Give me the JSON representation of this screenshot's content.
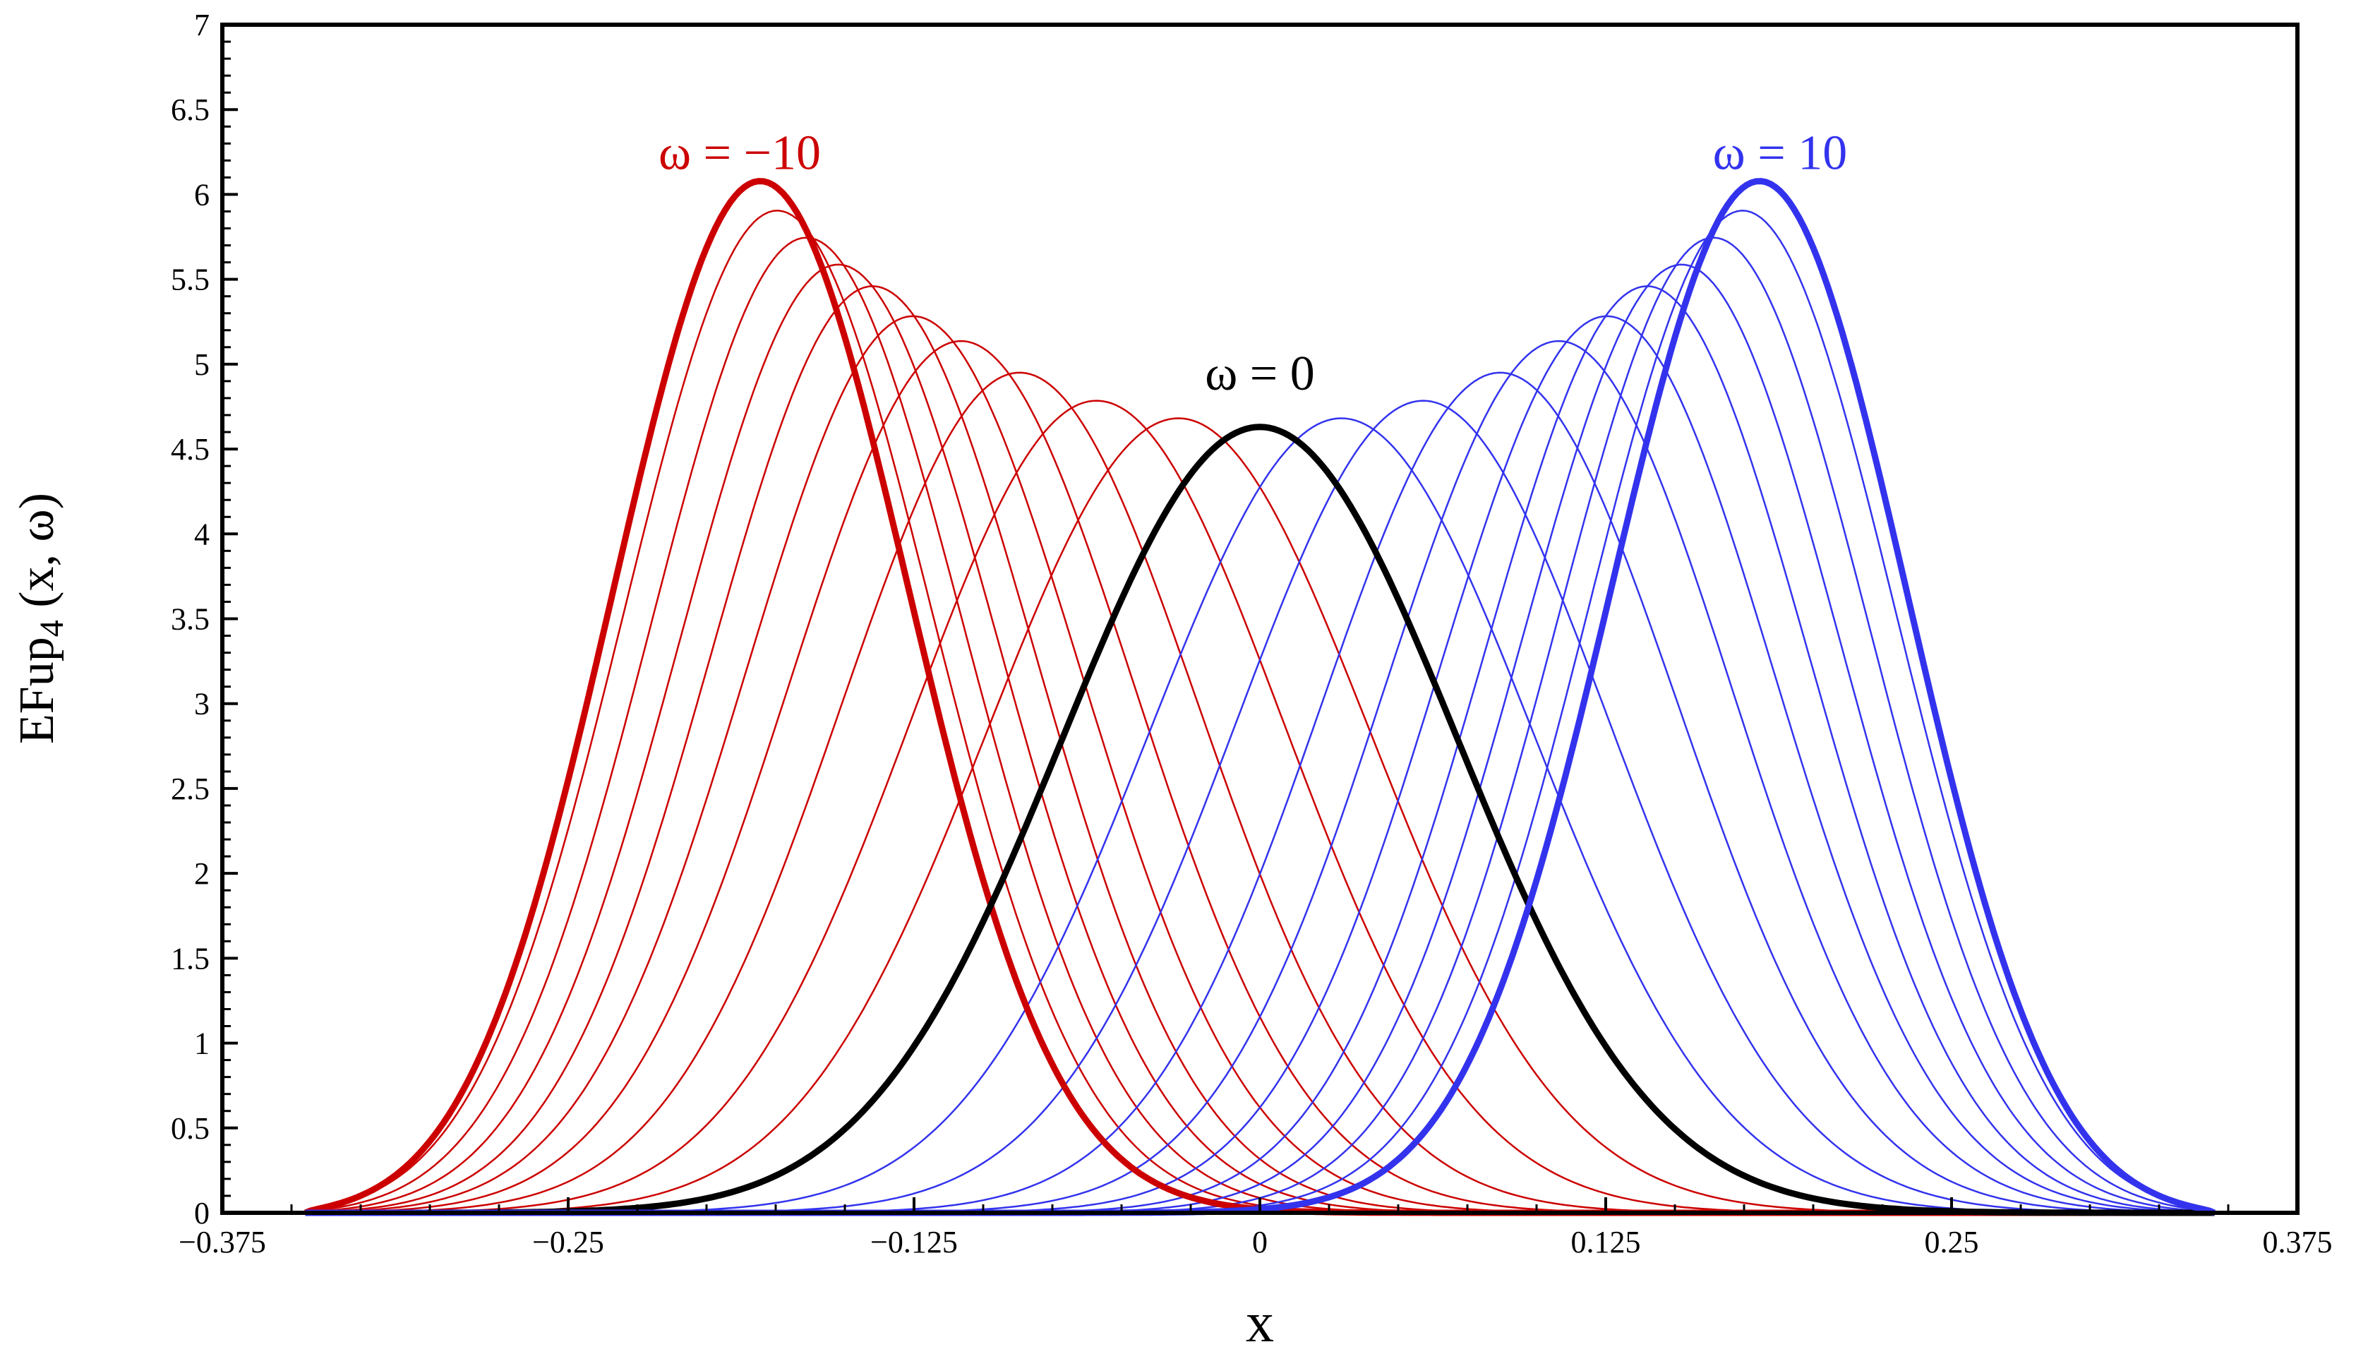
{
  "chart_data": {
    "type": "line",
    "title": "",
    "xlabel": "x",
    "ylabel_main": "EFup",
    "ylabel_sub": "4",
    "ylabel_tail": " (x, ω)",
    "xlim": [
      -0.375,
      0.375
    ],
    "ylim": [
      0,
      7
    ],
    "x_ticks": [
      -0.375,
      -0.25,
      -0.125,
      0,
      0.125,
      0.25,
      0.375
    ],
    "x_tick_labels": [
      "−0.375",
      "−0.25",
      "−0.125",
      "0",
      "0.125",
      "0.25",
      "0.375"
    ],
    "y_ticks": [
      0,
      0.5,
      1,
      1.5,
      2,
      2.5,
      3,
      3.5,
      4,
      4.5,
      5,
      5.5,
      6,
      6.5,
      7
    ],
    "y_tick_labels": [
      "0",
      "0.5",
      "1",
      "1.5",
      "2",
      "2.5",
      "3",
      "3.5",
      "4",
      "4.5",
      "5",
      "5.5",
      "6",
      "6.5",
      "7"
    ],
    "grid": false,
    "support": [
      -0.345,
      0.345
    ],
    "colors": {
      "negative": "#cc0000",
      "zero": "#000000",
      "positive": "#3333ee"
    },
    "series": [
      {
        "name": "ω = −10",
        "omega": -10,
        "peak_x": -0.188,
        "peak_y": 6.02,
        "sigma": 0.055,
        "emphasis": true
      },
      {
        "name": "ω = −9",
        "omega": -9,
        "peak_x": -0.182,
        "peak_y": 5.85,
        "sigma": 0.057
      },
      {
        "name": "ω = −8",
        "omega": -8,
        "peak_x": -0.171,
        "peak_y": 5.7,
        "sigma": 0.058
      },
      {
        "name": "ω = −7",
        "omega": -7,
        "peak_x": -0.159,
        "peak_y": 5.55,
        "sigma": 0.059
      },
      {
        "name": "ω = −6",
        "omega": -6,
        "peak_x": -0.146,
        "peak_y": 5.43,
        "sigma": 0.06
      },
      {
        "name": "ω = −5",
        "omega": -5,
        "peak_x": -0.131,
        "peak_y": 5.26,
        "sigma": 0.062
      },
      {
        "name": "ω = −4",
        "omega": -4,
        "peak_x": -0.113,
        "peak_y": 5.12,
        "sigma": 0.064
      },
      {
        "name": "ω = −3",
        "omega": -3,
        "peak_x": -0.091,
        "peak_y": 4.94,
        "sigma": 0.066
      },
      {
        "name": "ω = −2",
        "omega": -2,
        "peak_x": -0.062,
        "peak_y": 4.78,
        "sigma": 0.069
      },
      {
        "name": "ω = −1",
        "omega": -1,
        "peak_x": -0.031,
        "peak_y": 4.68,
        "sigma": 0.071
      },
      {
        "name": "ω = 0",
        "omega": 0,
        "peak_x": 0.0,
        "peak_y": 4.63,
        "sigma": 0.073,
        "emphasis": true
      },
      {
        "name": "ω = 1",
        "omega": 1,
        "peak_x": 0.031,
        "peak_y": 4.68,
        "sigma": 0.071
      },
      {
        "name": "ω = 2",
        "omega": 2,
        "peak_x": 0.062,
        "peak_y": 4.78,
        "sigma": 0.069
      },
      {
        "name": "ω = 3",
        "omega": 3,
        "peak_x": 0.091,
        "peak_y": 4.94,
        "sigma": 0.066
      },
      {
        "name": "ω = 4",
        "omega": 4,
        "peak_x": 0.113,
        "peak_y": 5.12,
        "sigma": 0.064
      },
      {
        "name": "ω = 5",
        "omega": 5,
        "peak_x": 0.131,
        "peak_y": 5.26,
        "sigma": 0.062
      },
      {
        "name": "ω = 6",
        "omega": 6,
        "peak_x": 0.146,
        "peak_y": 5.43,
        "sigma": 0.06
      },
      {
        "name": "ω = 7",
        "omega": 7,
        "peak_x": 0.159,
        "peak_y": 5.55,
        "sigma": 0.059
      },
      {
        "name": "ω = 8",
        "omega": 8,
        "peak_x": 0.171,
        "peak_y": 5.7,
        "sigma": 0.058
      },
      {
        "name": "ω = 9",
        "omega": 9,
        "peak_x": 0.182,
        "peak_y": 5.85,
        "sigma": 0.057
      },
      {
        "name": "ω = 10",
        "omega": 10,
        "peak_x": 0.188,
        "peak_y": 6.02,
        "sigma": 0.055,
        "emphasis": true
      }
    ],
    "annotations": [
      {
        "text": "ω = −10",
        "x": -0.188,
        "y": 6.15,
        "color": "#cc0000"
      },
      {
        "text": "ω = 0",
        "x": 0.0,
        "y": 4.85,
        "color": "#000000"
      },
      {
        "text": "ω = 10",
        "x": 0.188,
        "y": 6.15,
        "color": "#3333ee"
      }
    ]
  }
}
